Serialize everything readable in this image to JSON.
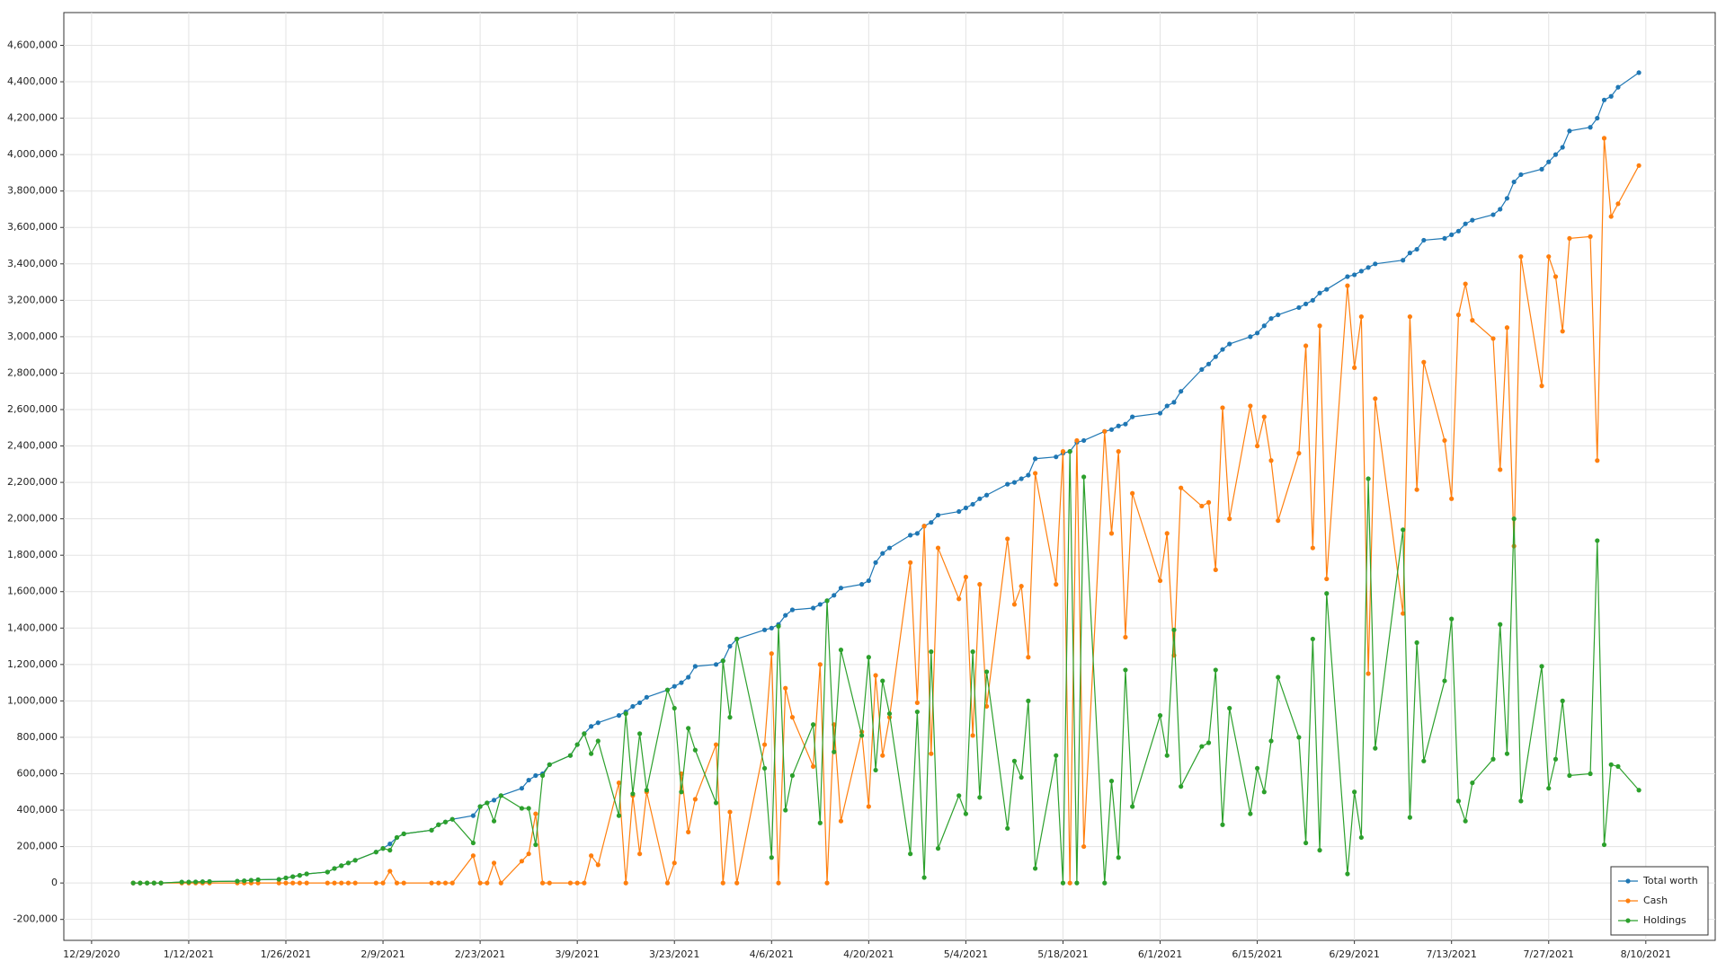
{
  "chart_data": {
    "type": "line",
    "x": [
      "1/4/2021",
      "1/5/2021",
      "1/6/2021",
      "1/7/2021",
      "1/8/2021",
      "1/11/2021",
      "1/12/2021",
      "1/13/2021",
      "1/14/2021",
      "1/15/2021",
      "1/19/2021",
      "1/20/2021",
      "1/21/2021",
      "1/22/2021",
      "1/25/2021",
      "1/26/2021",
      "1/27/2021",
      "1/28/2021",
      "1/29/2021",
      "2/1/2021",
      "2/2/2021",
      "2/3/2021",
      "2/4/2021",
      "2/5/2021",
      "2/8/2021",
      "2/9/2021",
      "2/10/2021",
      "2/11/2021",
      "2/12/2021",
      "2/16/2021",
      "2/17/2021",
      "2/18/2021",
      "2/19/2021",
      "2/22/2021",
      "2/23/2021",
      "2/24/2021",
      "2/25/2021",
      "2/26/2021",
      "3/1/2021",
      "3/2/2021",
      "3/3/2021",
      "3/4/2021",
      "3/5/2021",
      "3/8/2021",
      "3/9/2021",
      "3/10/2021",
      "3/11/2021",
      "3/12/2021",
      "3/15/2021",
      "3/16/2021",
      "3/17/2021",
      "3/18/2021",
      "3/19/2021",
      "3/22/2021",
      "3/23/2021",
      "3/24/2021",
      "3/25/2021",
      "3/26/2021",
      "3/29/2021",
      "3/30/2021",
      "3/31/2021",
      "4/1/2021",
      "4/5/2021",
      "4/6/2021",
      "4/7/2021",
      "4/8/2021",
      "4/9/2021",
      "4/12/2021",
      "4/13/2021",
      "4/14/2021",
      "4/15/2021",
      "4/16/2021",
      "4/19/2021",
      "4/20/2021",
      "4/21/2021",
      "4/22/2021",
      "4/23/2021",
      "4/26/2021",
      "4/27/2021",
      "4/28/2021",
      "4/29/2021",
      "4/30/2021",
      "5/3/2021",
      "5/4/2021",
      "5/5/2021",
      "5/6/2021",
      "5/7/2021",
      "5/10/2021",
      "5/11/2021",
      "5/12/2021",
      "5/13/2021",
      "5/14/2021",
      "5/17/2021",
      "5/18/2021",
      "5/19/2021",
      "5/20/2021",
      "5/21/2021",
      "5/24/2021",
      "5/25/2021",
      "5/26/2021",
      "5/27/2021",
      "5/28/2021",
      "6/1/2021",
      "6/2/2021",
      "6/3/2021",
      "6/4/2021",
      "6/7/2021",
      "6/8/2021",
      "6/9/2021",
      "6/10/2021",
      "6/11/2021",
      "6/14/2021",
      "6/15/2021",
      "6/16/2021",
      "6/17/2021",
      "6/18/2021",
      "6/21/2021",
      "6/22/2021",
      "6/23/2021",
      "6/24/2021",
      "6/25/2021",
      "6/28/2021",
      "6/29/2021",
      "6/30/2021",
      "7/1/2021",
      "7/2/2021",
      "7/6/2021",
      "7/7/2021",
      "7/8/2021",
      "7/9/2021",
      "7/12/2021",
      "7/13/2021",
      "7/14/2021",
      "7/15/2021",
      "7/16/2021",
      "7/19/2021",
      "7/20/2021",
      "7/21/2021",
      "7/22/2021",
      "7/23/2021",
      "7/26/2021",
      "7/27/2021",
      "7/28/2021",
      "7/29/2021",
      "7/30/2021",
      "8/2/2021",
      "8/3/2021",
      "8/4/2021",
      "8/5/2021",
      "8/6/2021",
      "8/9/2021"
    ],
    "series": [
      {
        "name": "Total worth",
        "color": "#1f77b4",
        "values": [
          0,
          0,
          0,
          0,
          0,
          5000,
          5000,
          6000,
          7000,
          8000,
          10000,
          12000,
          15000,
          18000,
          20000,
          28000,
          35000,
          42000,
          50000,
          60000,
          80000,
          95000,
          110000,
          125000,
          170000,
          190000,
          215000,
          250000,
          270000,
          290000,
          320000,
          335000,
          350000,
          370000,
          420000,
          440000,
          455000,
          480000,
          520000,
          565000,
          590000,
          600000,
          650000,
          700000,
          760000,
          820000,
          860000,
          880000,
          920000,
          940000,
          970000,
          990000,
          1020000,
          1060000,
          1080000,
          1100000,
          1130000,
          1190000,
          1200000,
          1220000,
          1300000,
          1340000,
          1390000,
          1400000,
          1420000,
          1470000,
          1500000,
          1510000,
          1530000,
          1550000,
          1580000,
          1620000,
          1640000,
          1660000,
          1760000,
          1810000,
          1840000,
          1910000,
          1920000,
          1960000,
          1980000,
          2020000,
          2040000,
          2060000,
          2080000,
          2110000,
          2130000,
          2190000,
          2200000,
          2220000,
          2240000,
          2330000,
          2340000,
          2360000,
          2370000,
          2420000,
          2430000,
          2480000,
          2490000,
          2510000,
          2520000,
          2560000,
          2580000,
          2620000,
          2640000,
          2700000,
          2820000,
          2850000,
          2890000,
          2930000,
          2960000,
          3000000,
          3020000,
          3060000,
          3100000,
          3120000,
          3160000,
          3180000,
          3200000,
          3240000,
          3260000,
          3330000,
          3340000,
          3360000,
          3380000,
          3400000,
          3420000,
          3460000,
          3480000,
          3530000,
          3540000,
          3560000,
          3580000,
          3620000,
          3640000,
          3670000,
          3700000,
          3760000,
          3850000,
          3890000,
          3920000,
          3960000,
          4000000,
          4040000,
          4130000,
          4150000,
          4200000,
          4300000,
          4320000,
          4370000,
          4450000
        ]
      },
      {
        "name": "Cash",
        "color": "#ff7f0e",
        "values": [
          0,
          0,
          0,
          0,
          0,
          0,
          0,
          0,
          0,
          0,
          0,
          0,
          0,
          0,
          0,
          0,
          0,
          0,
          0,
          0,
          0,
          0,
          0,
          0,
          0,
          0,
          65000,
          0,
          0,
          0,
          0,
          0,
          0,
          150000,
          0,
          0,
          110000,
          0,
          120000,
          160000,
          380000,
          0,
          0,
          0,
          0,
          0,
          150000,
          100000,
          550000,
          0,
          480000,
          160000,
          500000,
          0,
          110000,
          600000,
          280000,
          460000,
          760000,
          0,
          390000,
          0,
          760000,
          1260000,
          0,
          1070000,
          910000,
          640000,
          1200000,
          0,
          870000,
          340000,
          830000,
          420000,
          1140000,
          700000,
          910000,
          1760000,
          990000,
          1960000,
          710000,
          1840000,
          1560000,
          1680000,
          810000,
          1640000,
          970000,
          1890000,
          1530000,
          1630000,
          1240000,
          2250000,
          1640000,
          2370000,
          0,
          2430000,
          200000,
          2480000,
          1920000,
          2370000,
          1350000,
          2140000,
          1660000,
          1920000,
          1250000,
          2170000,
          2070000,
          2090000,
          1720000,
          2610000,
          2000000,
          2620000,
          2400000,
          2560000,
          2320000,
          1990000,
          2360000,
          2950000,
          1840000,
          3060000,
          1670000,
          3280000,
          2830000,
          3110000,
          1150000,
          2660000,
          1480000,
          3110000,
          2160000,
          2860000,
          2430000,
          2110000,
          3120000,
          3290000,
          3090000,
          2990000,
          2270000,
          3050000,
          1850000,
          3440000,
          2730000,
          3440000,
          3330000,
          3030000,
          3540000,
          3550000,
          2320000,
          4090000,
          3660000,
          3730000,
          3940000
        ]
      },
      {
        "name": "Holdings",
        "color": "#2ca02c",
        "values": [
          0,
          0,
          0,
          0,
          0,
          5000,
          5000,
          6000,
          7000,
          8000,
          10000,
          12000,
          15000,
          18000,
          20000,
          28000,
          35000,
          42000,
          50000,
          60000,
          80000,
          95000,
          110000,
          125000,
          170000,
          190000,
          180000,
          250000,
          270000,
          290000,
          320000,
          335000,
          350000,
          220000,
          420000,
          440000,
          340000,
          480000,
          410000,
          410000,
          210000,
          590000,
          650000,
          700000,
          760000,
          820000,
          710000,
          780000,
          370000,
          930000,
          490000,
          820000,
          510000,
          1060000,
          960000,
          500000,
          850000,
          730000,
          440000,
          1220000,
          910000,
          1340000,
          630000,
          140000,
          1410000,
          400000,
          590000,
          870000,
          330000,
          1550000,
          720000,
          1280000,
          810000,
          1240000,
          620000,
          1110000,
          930000,
          160000,
          940000,
          30000,
          1270000,
          190000,
          480000,
          380000,
          1270000,
          470000,
          1160000,
          300000,
          670000,
          580000,
          1000000,
          80000,
          700000,
          0,
          2370000,
          0,
          2230000,
          0,
          560000,
          140000,
          1170000,
          420000,
          920000,
          700000,
          1390000,
          530000,
          750000,
          770000,
          1170000,
          320000,
          960000,
          380000,
          630000,
          500000,
          780000,
          1130000,
          800000,
          220000,
          1340000,
          180000,
          1590000,
          50000,
          500000,
          250000,
          2220000,
          740000,
          1940000,
          360000,
          1320000,
          670000,
          1110000,
          1450000,
          450000,
          340000,
          550000,
          680000,
          1420000,
          710000,
          2000000,
          450000,
          1190000,
          520000,
          680000,
          1000000,
          590000,
          600000,
          1880000,
          210000,
          650000,
          640000,
          510000
        ]
      }
    ],
    "xlim": [
      "12/25/2020",
      "8/20/2021"
    ],
    "xticks": [
      "12/29/2020",
      "1/12/2021",
      "1/26/2021",
      "2/9/2021",
      "2/23/2021",
      "3/9/2021",
      "3/23/2021",
      "4/6/2021",
      "4/20/2021",
      "5/4/2021",
      "5/18/2021",
      "6/1/2021",
      "6/15/2021",
      "6/29/2021",
      "7/13/2021",
      "7/27/2021",
      "8/10/2021"
    ],
    "ylim": [
      -315000,
      4780000
    ],
    "yticks": [
      {
        "value": -200000,
        "label": "-200,000"
      },
      0,
      {
        "value": 200000,
        "label": "200,000"
      },
      {
        "value": 400000,
        "label": "400,000"
      },
      {
        "value": 600000,
        "label": "600,000"
      },
      {
        "value": 800000,
        "label": "800,000"
      },
      {
        "value": 1000000,
        "label": "1,000,000"
      },
      {
        "value": 1200000,
        "label": "1,200,000"
      },
      {
        "value": 1400000,
        "label": "1,400,000"
      },
      {
        "value": 1600000,
        "label": "1,600,000"
      },
      {
        "value": 1800000,
        "label": "1,800,000"
      },
      {
        "value": 2000000,
        "label": "2,000,000"
      },
      {
        "value": 2200000,
        "label": "2,200,000"
      },
      {
        "value": 2400000,
        "label": "2,400,000"
      },
      {
        "value": 2600000,
        "label": "2,600,000"
      },
      {
        "value": 2800000,
        "label": "2,800,000"
      },
      {
        "value": 3000000,
        "label": "3,000,000"
      },
      {
        "value": 3200000,
        "label": "3,200,000"
      },
      {
        "value": 3400000,
        "label": "3,400,000"
      },
      {
        "value": 3600000,
        "label": "3,600,000"
      },
      {
        "value": 3800000,
        "label": "3,800,000"
      },
      {
        "value": 4000000,
        "label": "4,000,000"
      },
      {
        "value": 4200000,
        "label": "4,200,000"
      },
      {
        "value": 4400000,
        "label": "4,400,000"
      },
      {
        "value": 4600000,
        "label": "4,600,000"
      }
    ],
    "grid": true,
    "legend": "lower right"
  }
}
